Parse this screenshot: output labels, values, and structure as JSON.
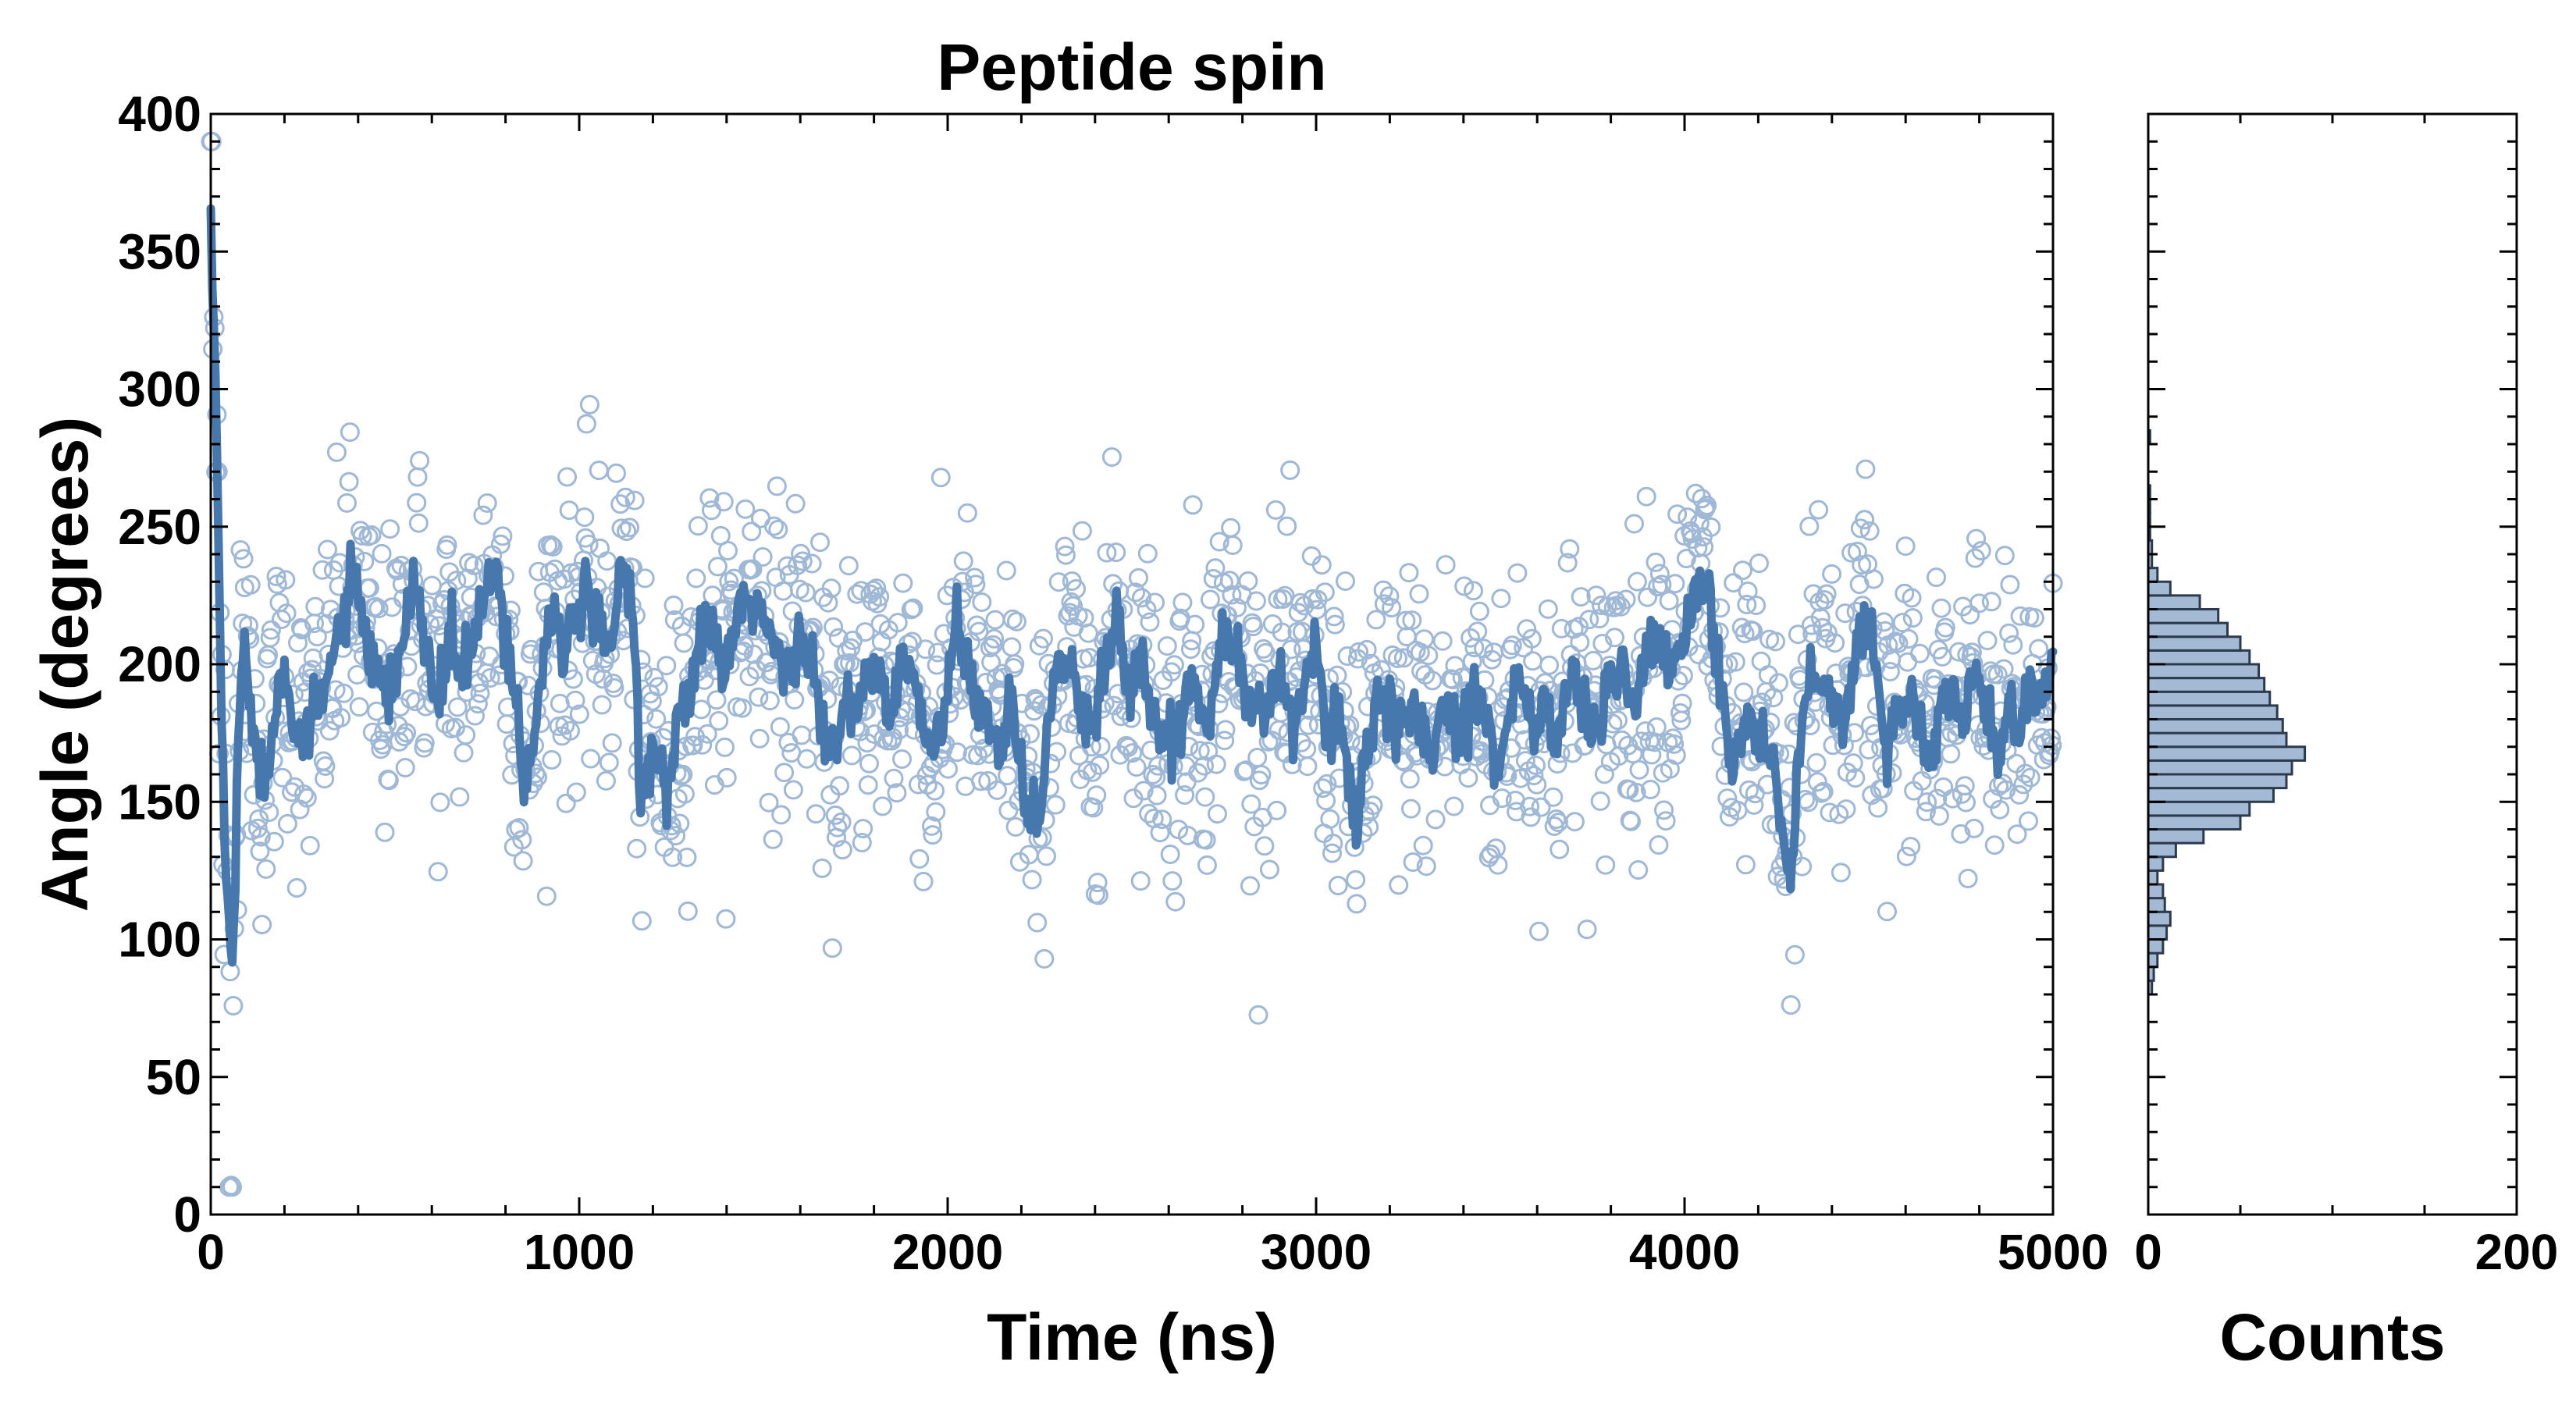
{
  "chart_data": [
    {
      "type": "scatter",
      "title": "Peptide spin",
      "xlabel": "Time (ns)",
      "ylabel": "Angle (degrees)",
      "xlim": [
        0,
        5000
      ],
      "ylim": [
        0,
        400
      ],
      "x_ticks": [
        "0",
        "1000",
        "2000",
        "3000",
        "4000",
        "5000"
      ],
      "y_ticks": [
        "0",
        "50",
        "100",
        "150",
        "200",
        "250",
        "300",
        "350",
        "400"
      ],
      "grid": false,
      "legend": "none",
      "colors": {
        "points": "#9fb8d6",
        "line": "#4678ad"
      },
      "series": [
        {
          "style": "open-circles",
          "trace_anchors": [
            [
              0,
              360
            ],
            [
              15,
              290
            ],
            [
              30,
              175
            ],
            [
              45,
              110
            ],
            [
              60,
              90
            ],
            [
              75,
              170
            ],
            [
              90,
              215
            ],
            [
              110,
              185
            ],
            [
              130,
              160
            ],
            [
              150,
              158
            ],
            [
              180,
              190
            ],
            [
              200,
              205
            ],
            [
              230,
              175
            ],
            [
              260,
              170
            ],
            [
              290,
              185
            ],
            [
              320,
              195
            ],
            [
              350,
              215
            ],
            [
              380,
              228
            ],
            [
              410,
              215
            ],
            [
              440,
              200
            ],
            [
              470,
              185
            ],
            [
              500,
              195
            ],
            [
              530,
              215
            ],
            [
              560,
              230
            ],
            [
              590,
              200
            ],
            [
              620,
              185
            ],
            [
              650,
              210
            ],
            [
              680,
              195
            ],
            [
              710,
              205
            ],
            [
              740,
              225
            ],
            [
              770,
              230
            ],
            [
              800,
              215
            ],
            [
              830,
              185
            ],
            [
              850,
              160
            ],
            [
              870,
              165
            ],
            [
              900,
              200
            ],
            [
              930,
              225
            ],
            [
              960,
              205
            ],
            [
              990,
              215
            ],
            [
              1020,
              225
            ],
            [
              1050,
              210
            ],
            [
              1080,
              205
            ],
            [
              1110,
              228
            ],
            [
              1130,
              240
            ],
            [
              1150,
              205
            ],
            [
              1170,
              150
            ],
            [
              1190,
              165
            ],
            [
              1210,
              175
            ],
            [
              1240,
              150
            ],
            [
              1270,
              180
            ],
            [
              1300,
              190
            ],
            [
              1330,
              210
            ],
            [
              1360,
              215
            ],
            [
              1390,
              195
            ],
            [
              1420,
              210
            ],
            [
              1450,
              220
            ],
            [
              1480,
              225
            ],
            [
              1510,
              210
            ],
            [
              1540,
              205
            ],
            [
              1570,
              195
            ],
            [
              1600,
              215
            ],
            [
              1630,
              205
            ],
            [
              1660,
              175
            ],
            [
              1690,
              165
            ],
            [
              1720,
              185
            ],
            [
              1750,
              180
            ],
            [
              1780,
              195
            ],
            [
              1810,
              200
            ],
            [
              1840,
              180
            ],
            [
              1870,
              195
            ],
            [
              1900,
              200
            ],
            [
              1930,
              180
            ],
            [
              1960,
              165
            ],
            [
              1990,
              185
            ],
            [
              2020,
              210
            ],
            [
              2050,
              200
            ],
            [
              2080,
              185
            ],
            [
              2110,
              180
            ],
            [
              2140,
              170
            ],
            [
              2170,
              190
            ],
            [
              2200,
              165
            ],
            [
              2220,
              140
            ],
            [
              2250,
              150
            ],
            [
              2280,
              185
            ],
            [
              2310,
              205
            ],
            [
              2340,
              195
            ],
            [
              2370,
              180
            ],
            [
              2400,
              175
            ],
            [
              2430,
              205
            ],
            [
              2460,
              215
            ],
            [
              2490,
              195
            ],
            [
              2520,
              200
            ],
            [
              2550,
              185
            ],
            [
              2580,
              175
            ],
            [
              2610,
              170
            ],
            [
              2640,
              185
            ],
            [
              2670,
              195
            ],
            [
              2700,
              180
            ],
            [
              2730,
              200
            ],
            [
              2760,
              215
            ],
            [
              2790,
              200
            ],
            [
              2820,
              185
            ],
            [
              2850,
              180
            ],
            [
              2880,
              190
            ],
            [
              2910,
              195
            ],
            [
              2940,
              180
            ],
            [
              2970,
              190
            ],
            [
              3000,
              205
            ],
            [
              3030,
              175
            ],
            [
              3060,
              180
            ],
            [
              3090,
              160
            ],
            [
              3110,
              145
            ],
            [
              3140,
              170
            ],
            [
              3170,
              185
            ],
            [
              3200,
              180
            ],
            [
              3230,
              175
            ],
            [
              3260,
              185
            ],
            [
              3290,
              180
            ],
            [
              3320,
              165
            ],
            [
              3350,
              190
            ],
            [
              3380,
              175
            ],
            [
              3410,
              185
            ],
            [
              3440,
              195
            ],
            [
              3470,
              175
            ],
            [
              3500,
              165
            ],
            [
              3530,
              185
            ],
            [
              3560,
              195
            ],
            [
              3590,
              175
            ],
            [
              3620,
              185
            ],
            [
              3650,
              170
            ],
            [
              3680,
              190
            ],
            [
              3710,
              195
            ],
            [
              3740,
              180
            ],
            [
              3770,
              175
            ],
            [
              3800,
              195
            ],
            [
              3830,
              200
            ],
            [
              3860,
              185
            ],
            [
              3890,
              200
            ],
            [
              3920,
              210
            ],
            [
              3950,
              195
            ],
            [
              3980,
              205
            ],
            [
              4010,
              215
            ],
            [
              4040,
              235
            ],
            [
              4070,
              225
            ],
            [
              4100,
              185
            ],
            [
              4130,
              165
            ],
            [
              4160,
              180
            ],
            [
              4190,
              175
            ],
            [
              4220,
              170
            ],
            [
              4250,
              160
            ],
            [
              4270,
              130
            ],
            [
              4290,
              125
            ],
            [
              4310,
              165
            ],
            [
              4340,
              200
            ],
            [
              4370,
              195
            ],
            [
              4400,
              185
            ],
            [
              4430,
              175
            ],
            [
              4460,
              200
            ],
            [
              4490,
              220
            ],
            [
              4520,
              195
            ],
            [
              4550,
              170
            ],
            [
              4580,
              185
            ],
            [
              4610,
              190
            ],
            [
              4640,
              175
            ],
            [
              4670,
              165
            ],
            [
              4700,
              185
            ],
            [
              4730,
              190
            ],
            [
              4760,
              175
            ],
            [
              4790,
              200
            ],
            [
              4820,
              180
            ],
            [
              4850,
              165
            ],
            [
              4880,
              185
            ],
            [
              4910,
              175
            ],
            [
              4940,
              190
            ],
            [
              4970,
              185
            ],
            [
              5000,
              200
            ]
          ],
          "point_spread": 30
        },
        {
          "style": "smoothed-line",
          "source": "trace_anchors"
        },
        {
          "type": "histogram",
          "orientation": "horizontal",
          "bin_width": 5,
          "bins_start": 80,
          "counts": [
            2,
            3,
            5,
            8,
            10,
            12,
            9,
            8,
            5,
            8,
            15,
            30,
            50,
            55,
            68,
            75,
            78,
            85,
            75,
            73,
            70,
            66,
            63,
            60,
            55,
            50,
            43,
            38,
            28,
            12,
            5,
            2,
            2,
            1,
            1,
            1,
            1,
            0,
            0,
            0,
            1
          ],
          "xlabel": "Counts",
          "xlim": [
            0,
            200
          ],
          "x_ticks": [
            "0",
            "200"
          ],
          "ylim": [
            0,
            400
          ],
          "colors": {
            "fill": "#a3b9d4",
            "edge": "#2b3a4d"
          }
        }
      ]
    }
  ]
}
